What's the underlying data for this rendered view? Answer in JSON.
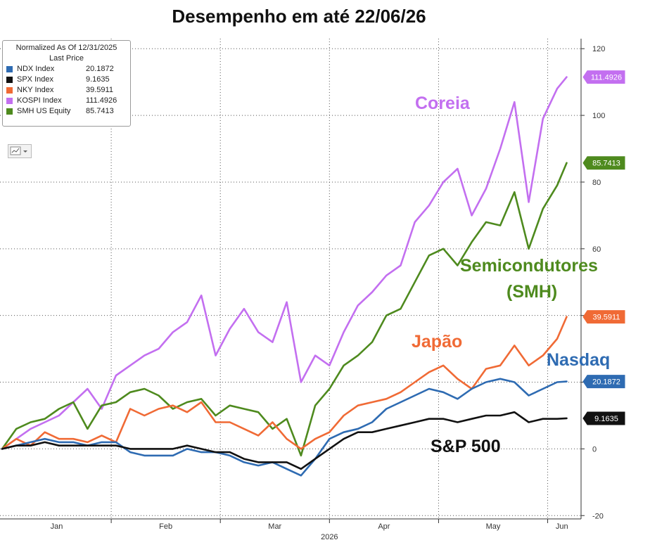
{
  "title": "Desempenho em até 22/06/26",
  "legend": {
    "header1": "Normalized As Of 12/31/2025",
    "header2": "Last Price",
    "items": [
      {
        "name": "NDX Index",
        "value": "20.1872",
        "color": "#2e6bb2"
      },
      {
        "name": "SPX Index",
        "value": "9.1635",
        "color": "#111111"
      },
      {
        "name": "NKY Index",
        "value": "39.5911",
        "color": "#f06a35"
      },
      {
        "name": "KOSPI Index",
        "value": "111.4926",
        "color": "#c36ff0"
      },
      {
        "name": "SMH US Equity",
        "value": "85.7413",
        "color": "#4e8a1e"
      }
    ]
  },
  "annotations": {
    "coreia": "Coreia",
    "semi1": "Semicondutores",
    "semi2": "(SMH)",
    "japao": "Japão",
    "nasdaq": "Nasdaq",
    "sp500": "S&P 500"
  },
  "chart_data": {
    "type": "line",
    "title": "Desempenho em até 22/06/26",
    "xlabel": "2026",
    "x_ticks": [
      "Jan",
      "Feb",
      "Mar",
      "Apr",
      "May",
      "Jun"
    ],
    "y_ticks": [
      -20,
      0,
      20,
      40,
      60,
      80,
      100,
      120
    ],
    "ylim": [
      -21,
      123
    ],
    "xlim": [
      0,
      121
    ],
    "grid": true,
    "y_axis_side": "right",
    "x": [
      0,
      3,
      6,
      9,
      12,
      15,
      18,
      21,
      24,
      27,
      30,
      33,
      36,
      39,
      42,
      45,
      48,
      51,
      54,
      57,
      60,
      63,
      66,
      69,
      72,
      75,
      78,
      81,
      84,
      87,
      90,
      93,
      96,
      99,
      102,
      105,
      108,
      111,
      114,
      117,
      119
    ],
    "series": [
      {
        "name": "KOSPI Index",
        "color": "#c36ff0",
        "last_label": "111.4926",
        "values": [
          0,
          3,
          6,
          8,
          10,
          14,
          18,
          12,
          22,
          25,
          28,
          30,
          35,
          38,
          46,
          28,
          36,
          42,
          35,
          32,
          44,
          20,
          28,
          25,
          35,
          43,
          47,
          52,
          55,
          68,
          73,
          80,
          84,
          70,
          78,
          90,
          104,
          74,
          99,
          108,
          111.49
        ]
      },
      {
        "name": "SMH US Equity",
        "color": "#4e8a1e",
        "last_label": "85.7413",
        "values": [
          0,
          6,
          8,
          9,
          12,
          14,
          6,
          13,
          14,
          17,
          18,
          16,
          12,
          14,
          15,
          10,
          13,
          12,
          11,
          6,
          9,
          -2,
          13,
          18,
          25,
          28,
          32,
          40,
          42,
          50,
          58,
          60,
          55,
          62,
          68,
          67,
          77,
          60,
          72,
          79,
          85.74
        ]
      },
      {
        "name": "NKY Index",
        "color": "#f06a35",
        "last_label": "39.5911",
        "values": [
          0,
          3,
          1,
          5,
          3,
          3,
          2,
          4,
          2,
          12,
          10,
          12,
          13,
          11,
          14,
          8,
          8,
          6,
          4,
          8,
          3,
          0,
          3,
          5,
          10,
          13,
          14,
          15,
          17,
          20,
          23,
          25,
          21,
          18,
          24,
          25,
          31,
          25,
          28,
          33,
          39.59
        ]
      },
      {
        "name": "NDX Index",
        "color": "#2e6bb2",
        "last_label": "20.1872",
        "values": [
          0,
          1,
          2,
          3,
          2,
          2,
          1,
          2,
          2,
          -1,
          -2,
          -2,
          -2,
          0,
          -1,
          -1,
          -2,
          -4,
          -5,
          -4,
          -6,
          -8,
          -3,
          3,
          5,
          6,
          8,
          12,
          14,
          16,
          18,
          17,
          15,
          18,
          20,
          21,
          20,
          16,
          18,
          20,
          20.19
        ]
      },
      {
        "name": "SPX Index",
        "color": "#111111",
        "last_label": "9.1635",
        "values": [
          0,
          1,
          1,
          2,
          1,
          1,
          1,
          1,
          1,
          0,
          0,
          0,
          0,
          1,
          0,
          -1,
          -1,
          -3,
          -4,
          -4,
          -4,
          -6,
          -3,
          0,
          3,
          5,
          5,
          6,
          7,
          8,
          9,
          9,
          8,
          9,
          10,
          10,
          11,
          8,
          9,
          9,
          9.16
        ]
      }
    ]
  }
}
